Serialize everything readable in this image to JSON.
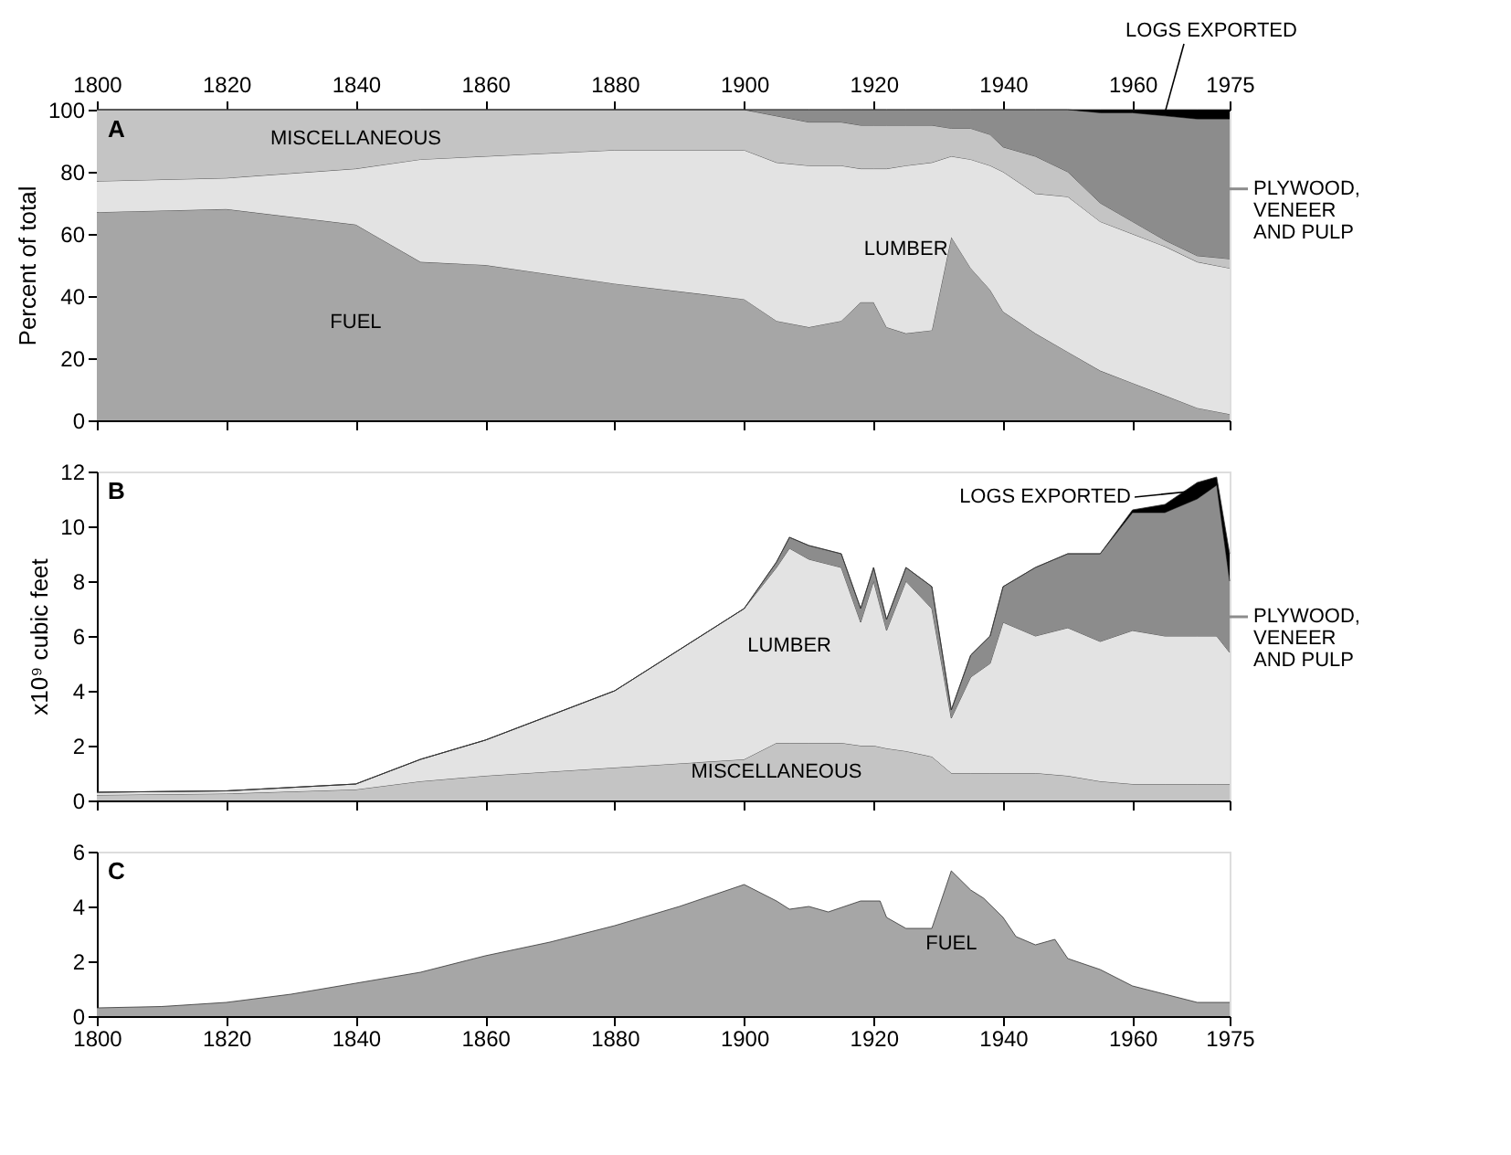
{
  "chart_data": [
    {
      "type": "area",
      "stacked": true,
      "ylabel": "Percent of total",
      "annotations": [
        "A"
      ],
      "x": [
        1800,
        1820,
        1840,
        1850,
        1860,
        1880,
        1900,
        1905,
        1910,
        1915,
        1918,
        1920,
        1922,
        1925,
        1929,
        1932,
        1935,
        1938,
        1940,
        1945,
        1950,
        1955,
        1960,
        1965,
        1970,
        1975
      ],
      "xlim": [
        1800,
        1975
      ],
      "x2lim": [
        1800,
        1975
      ],
      "x2ticks": [
        1800,
        1820,
        1840,
        1860,
        1880,
        1900,
        1920,
        1940,
        1960,
        1975
      ],
      "ylim": [
        0,
        100
      ],
      "yticks": [
        0,
        20,
        40,
        60,
        80,
        100
      ],
      "series": [
        {
          "name": "FUEL",
          "color": "#a6a6a6",
          "values": [
            67,
            68,
            63,
            51,
            50,
            44,
            39,
            32,
            30,
            32,
            38,
            38,
            30,
            28,
            29,
            59,
            49,
            42,
            35,
            28,
            22,
            16,
            12,
            8,
            4,
            2
          ]
        },
        {
          "name": "LUMBER",
          "color": "#e3e3e3",
          "values": [
            10,
            10,
            18,
            33,
            35,
            43,
            48,
            51,
            52,
            50,
            43,
            43,
            51,
            54,
            54,
            26,
            35,
            40,
            45,
            45,
            50,
            48,
            48,
            48,
            47,
            47
          ]
        },
        {
          "name": "MISCELLANEOUS",
          "color": "#c4c4c4",
          "values": [
            23,
            22,
            19,
            16,
            15,
            13,
            13,
            15,
            14,
            14,
            14,
            14,
            14,
            13,
            12,
            9,
            10,
            10,
            8,
            12,
            8,
            6,
            4,
            2,
            2,
            3
          ]
        },
        {
          "name": "PLYWOOD, VENEER AND PULP",
          "color": "#8c8c8c",
          "values": [
            0,
            0,
            0,
            0,
            0,
            0,
            0,
            2,
            4,
            4,
            5,
            5,
            5,
            5,
            5,
            6,
            6,
            8,
            12,
            15,
            20,
            29,
            35,
            40,
            44,
            45
          ]
        },
        {
          "name": "LOGS EXPORTED",
          "color": "#000000",
          "values": [
            0,
            0,
            0,
            0,
            0,
            0,
            0,
            0,
            0,
            0,
            0,
            0,
            0,
            0,
            0,
            0,
            0,
            0,
            0,
            0,
            0,
            1,
            1,
            2,
            3,
            3
          ]
        }
      ]
    },
    {
      "type": "area",
      "stacked": true,
      "ylabel": "x10⁹ cubic feet",
      "annotations": [
        "B"
      ],
      "tick_labels": "y",
      "x": [
        1800,
        1820,
        1840,
        1850,
        1860,
        1880,
        1900,
        1905,
        1907,
        1910,
        1915,
        1918,
        1920,
        1922,
        1925,
        1929,
        1932,
        1935,
        1938,
        1940,
        1945,
        1950,
        1955,
        1960,
        1965,
        1970,
        1973,
        1975
      ],
      "xlim": [
        1800,
        1975
      ],
      "xticks": [
        1800,
        1820,
        1840,
        1860,
        1880,
        1900,
        1920,
        1940,
        1960,
        1975
      ],
      "ylim": [
        0,
        12
      ],
      "yticks": [
        0,
        2,
        4,
        6,
        8,
        10,
        12
      ],
      "series": [
        {
          "name": "MISCELLANEOUS",
          "color": "#c4c4c4",
          "values": [
            0.2,
            0.25,
            0.4,
            0.7,
            0.9,
            1.2,
            1.5,
            2.1,
            2.1,
            2.1,
            2.1,
            2.0,
            2.0,
            1.9,
            1.8,
            1.6,
            1.0,
            1.0,
            1.0,
            1.0,
            1.0,
            0.9,
            0.7,
            0.6,
            0.6,
            0.6,
            0.6,
            0.6
          ]
        },
        {
          "name": "LUMBER",
          "color": "#e3e3e3",
          "values": [
            0.1,
            0.1,
            0.2,
            0.8,
            1.3,
            2.8,
            5.5,
            6.4,
            7.1,
            6.7,
            6.4,
            4.5,
            6.0,
            4.3,
            6.2,
            5.4,
            2.0,
            3.5,
            4.0,
            5.5,
            5.0,
            5.4,
            5.1,
            5.6,
            5.4,
            5.4,
            5.4,
            4.8
          ]
        },
        {
          "name": "PLYWOOD, VENEER AND PULP",
          "color": "#8c8c8c",
          "values": [
            0,
            0,
            0,
            0,
            0,
            0,
            0,
            0.2,
            0.4,
            0.5,
            0.5,
            0.5,
            0.5,
            0.4,
            0.5,
            0.8,
            0.3,
            0.8,
            1.0,
            1.3,
            2.5,
            2.7,
            3.2,
            4.3,
            4.5,
            5.0,
            5.5,
            2.6
          ]
        },
        {
          "name": "LOGS EXPORTED",
          "color": "#000000",
          "values": [
            0,
            0,
            0,
            0,
            0,
            0,
            0,
            0,
            0,
            0,
            0,
            0,
            0,
            0,
            0,
            0,
            0,
            0,
            0,
            0,
            0,
            0,
            0,
            0.1,
            0.3,
            0.6,
            0.3,
            1.0
          ]
        }
      ]
    },
    {
      "type": "area",
      "stacked": true,
      "annotations": [
        "C"
      ],
      "x": [
        1800,
        1810,
        1820,
        1830,
        1840,
        1850,
        1860,
        1870,
        1880,
        1890,
        1900,
        1905,
        1907,
        1910,
        1913,
        1918,
        1921,
        1922,
        1925,
        1929,
        1932,
        1935,
        1937,
        1940,
        1942,
        1945,
        1948,
        1950,
        1955,
        1960,
        1965,
        1970,
        1975
      ],
      "xlim": [
        1800,
        1975
      ],
      "xticks": [
        1800,
        1820,
        1840,
        1860,
        1880,
        1900,
        1920,
        1940,
        1960,
        1975
      ],
      "ylim": [
        0,
        6
      ],
      "yticks": [
        0,
        2,
        4,
        6
      ],
      "series": [
        {
          "name": "FUEL",
          "color": "#a6a6a6",
          "values": [
            0.3,
            0.35,
            0.5,
            0.8,
            1.2,
            1.6,
            2.2,
            2.7,
            3.3,
            4.0,
            4.8,
            4.2,
            3.9,
            4.0,
            3.8,
            4.2,
            4.2,
            3.6,
            3.2,
            3.2,
            5.3,
            4.6,
            4.3,
            3.6,
            2.9,
            2.6,
            2.8,
            2.1,
            1.7,
            1.1,
            0.8,
            0.5,
            0.5
          ]
        }
      ]
    }
  ]
}
